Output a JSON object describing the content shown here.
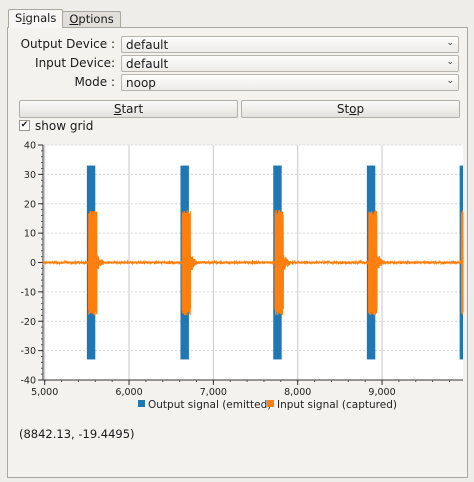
{
  "tabs": [
    {
      "prefix": "S",
      "under": "i",
      "rest": "gnals"
    },
    {
      "prefix": "",
      "under": "O",
      "rest": "ptions"
    }
  ],
  "form": {
    "output_device_label": "Output Device :",
    "output_device_value": "default",
    "input_device_label": "Input Device:",
    "input_device_value": "default",
    "mode_label": "Mode :",
    "mode_value": "noop"
  },
  "buttons": {
    "start_under": "S",
    "start_rest": "tart",
    "stop_prefix": "St",
    "stop_under": "o",
    "stop_rest": "p"
  },
  "show_grid_label": "show grid",
  "show_grid_checked": true,
  "checkmark": "✔",
  "dropdown_arrow": "⌄",
  "coord_readout": "(8842.13, -19.4495)",
  "colors": {
    "output": "#1f77b4",
    "input": "#ff7f0e"
  },
  "chart_data": {
    "type": "line",
    "xlim": [
      4980,
      9960
    ],
    "ylim": [
      -40,
      40
    ],
    "xticks": [
      5000,
      6000,
      7000,
      8000,
      9000
    ],
    "xtick_labels": [
      "5,000",
      "6,000",
      "7,000",
      "8,000",
      "9,000"
    ],
    "yticks": [
      -40,
      -30,
      -20,
      -10,
      0,
      10,
      20,
      30,
      40
    ],
    "ytick_labels": [
      "-40",
      "-30",
      "-20",
      "-10",
      "0",
      "10",
      "20",
      "30",
      "40"
    ],
    "grid": true,
    "legend_position": "bottom",
    "series": [
      {
        "name": "Output signal (emitted)",
        "pulse_starts": [
          5500,
          6610,
          7710,
          8820,
          9920
        ],
        "pulse_duration": 100,
        "amplitude": 33
      },
      {
        "name": "Input signal (captured)",
        "pulse_starts": [
          5520,
          6630,
          7730,
          8840,
          9940
        ],
        "pulse_duration": 100,
        "amplitude": 18,
        "baseline_noise": 0.4
      }
    ]
  }
}
